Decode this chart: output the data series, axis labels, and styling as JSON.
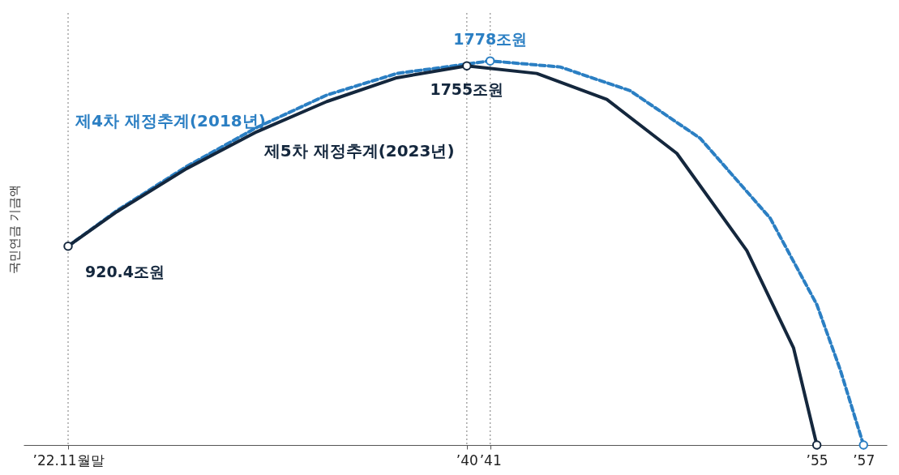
{
  "chart_data": {
    "type": "line",
    "ylabel": "국민연금 기금액",
    "xlim": [
      "2021-01-01",
      "2058-01-01"
    ],
    "ylim": [
      0,
      2000
    ],
    "xticks": [
      {
        "value": "2022-11-30",
        "label": "’22.11월말"
      },
      {
        "value": "2040",
        "label": "’40"
      },
      {
        "value": "2041",
        "label": "’41"
      },
      {
        "value": "2055",
        "label": "’55"
      },
      {
        "value": "2057",
        "label": "’57"
      }
    ],
    "tick_labels": "x",
    "grid": false,
    "legend": false,
    "ref_lines": [
      {
        "axis": "x",
        "value": "2022-11-30",
        "line_style": "dotted",
        "color": "#999999"
      },
      {
        "axis": "x",
        "value": "2040",
        "line_style": "dotted",
        "color": "#999999"
      },
      {
        "axis": "x",
        "value": "2041",
        "line_style": "dotted",
        "color": "#999999"
      }
    ],
    "series": [
      {
        "name": "제4차 재정추계(2018년)",
        "color": "#2b7fc3",
        "line_style": "dashed",
        "marker": "none",
        "x": [
          "2022-11-30",
          "2025",
          "2028",
          "2031",
          "2034",
          "2037",
          "2041",
          "2044",
          "2047",
          "2050",
          "2053",
          "2055",
          "2056",
          "2057"
        ],
        "values": [
          920.4,
          1085,
          1290,
          1470,
          1620,
          1720,
          1778,
          1750,
          1640,
          1420,
          1050,
          650,
          350,
          0
        ]
      },
      {
        "name": "제5차 재정추계(2023년)",
        "color": "#14273d",
        "line_style": "solid",
        "marker": "none",
        "x": [
          "2022-11-30",
          "2025",
          "2028",
          "2031",
          "2034",
          "2037",
          "2040",
          "2043",
          "2046",
          "2049",
          "2052",
          "2054",
          "2055"
        ],
        "values": [
          920.4,
          1080,
          1280,
          1450,
          1590,
          1700,
          1755,
          1720,
          1600,
          1350,
          900,
          450,
          0
        ]
      },
      {
        "type": "scatter",
        "color": "#2b7fc3",
        "marker": "circle",
        "x": [
          "2041",
          "2057"
        ],
        "values": [
          1778,
          0
        ],
        "value_labels": [
          "1778조원",
          null
        ]
      },
      {
        "type": "scatter",
        "color": "#14273d",
        "marker": "circle",
        "x": [
          "2022-11-30",
          "2040",
          "2055"
        ],
        "values": [
          920.4,
          1755,
          0
        ],
        "value_labels": [
          "920.4조원",
          "1755조원",
          null
        ]
      }
    ]
  }
}
